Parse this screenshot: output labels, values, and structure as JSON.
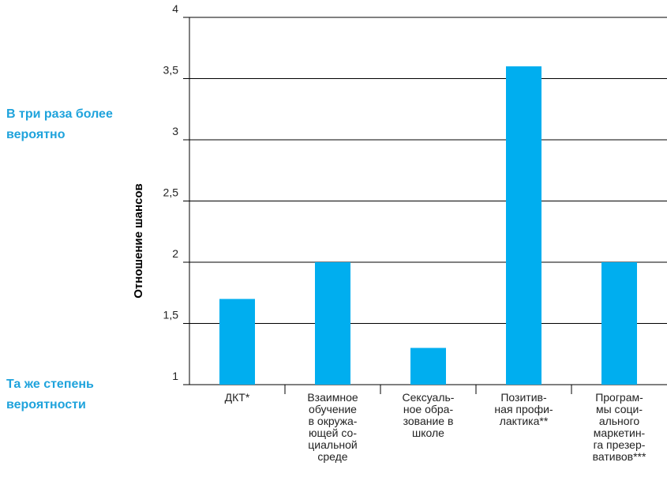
{
  "annotations": {
    "top": "В три раза более\nвероятно",
    "bottom": "Та же степень\nвероятности"
  },
  "colors": {
    "bar": "#00aeef",
    "axis": "#000000",
    "text": "#1fa3dc"
  },
  "chart_data": {
    "type": "bar",
    "title": "",
    "xlabel": "",
    "ylabel": "Отношение шансов",
    "ylim": [
      1,
      4
    ],
    "yticks": [
      "1",
      "1,5",
      "2",
      "2,5",
      "3",
      "3,5",
      "4"
    ],
    "grid": true,
    "categories": [
      [
        "ДКТ*"
      ],
      [
        "Взаимное",
        "обучение",
        "в окружа-",
        "ющей со-",
        "циальной",
        "среде"
      ],
      [
        "Сексуаль-",
        "ное обра-",
        "зование в",
        "школе"
      ],
      [
        "Позитив-",
        "ная профи-",
        "лактика**"
      ],
      [
        "Програм-",
        "мы соци-",
        "ального",
        "маркетин-",
        "га презер-",
        "вативов***"
      ]
    ],
    "values": [
      1.7,
      2.0,
      1.3,
      3.6,
      2.0
    ]
  }
}
